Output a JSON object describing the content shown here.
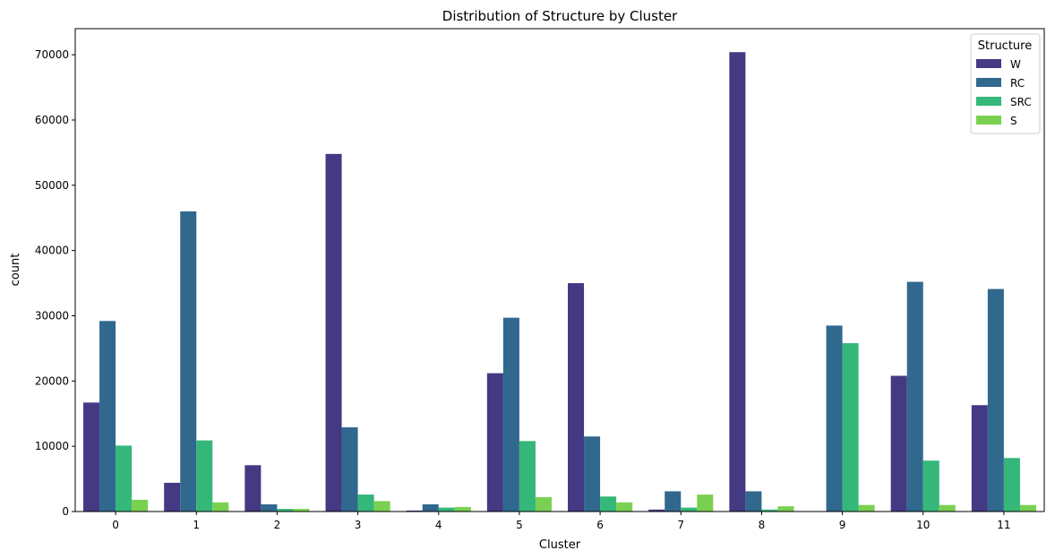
{
  "chart_data": {
    "type": "bar",
    "title": "Distribution of Structure by Cluster",
    "xlabel": "Cluster",
    "ylabel": "count",
    "categories": [
      "0",
      "1",
      "2",
      "3",
      "4",
      "5",
      "6",
      "7",
      "8",
      "9",
      "10",
      "11"
    ],
    "ylim": [
      0,
      74000
    ],
    "yticks": [
      0,
      10000,
      20000,
      30000,
      40000,
      50000,
      60000,
      70000
    ],
    "grid": false,
    "legend": {
      "title": "Structure",
      "placement": "top-right"
    },
    "series": [
      {
        "name": "W",
        "color": "#443983",
        "values": [
          16700,
          4400,
          7100,
          54800,
          150,
          21200,
          35000,
          300,
          70400,
          0,
          20800,
          16300
        ]
      },
      {
        "name": "RC",
        "color": "#31688e",
        "values": [
          29200,
          46000,
          1100,
          12900,
          1100,
          29700,
          11500,
          3100,
          3100,
          28500,
          35200,
          34100
        ]
      },
      {
        "name": "SRC",
        "color": "#35b779",
        "values": [
          10100,
          10900,
          400,
          2600,
          600,
          10800,
          2300,
          600,
          300,
          25800,
          7800,
          8200
        ]
      },
      {
        "name": "S",
        "color": "#7ad151",
        "values": [
          1800,
          1400,
          400,
          1600,
          700,
          2200,
          1400,
          2600,
          800,
          1000,
          1000,
          1000
        ]
      }
    ]
  }
}
